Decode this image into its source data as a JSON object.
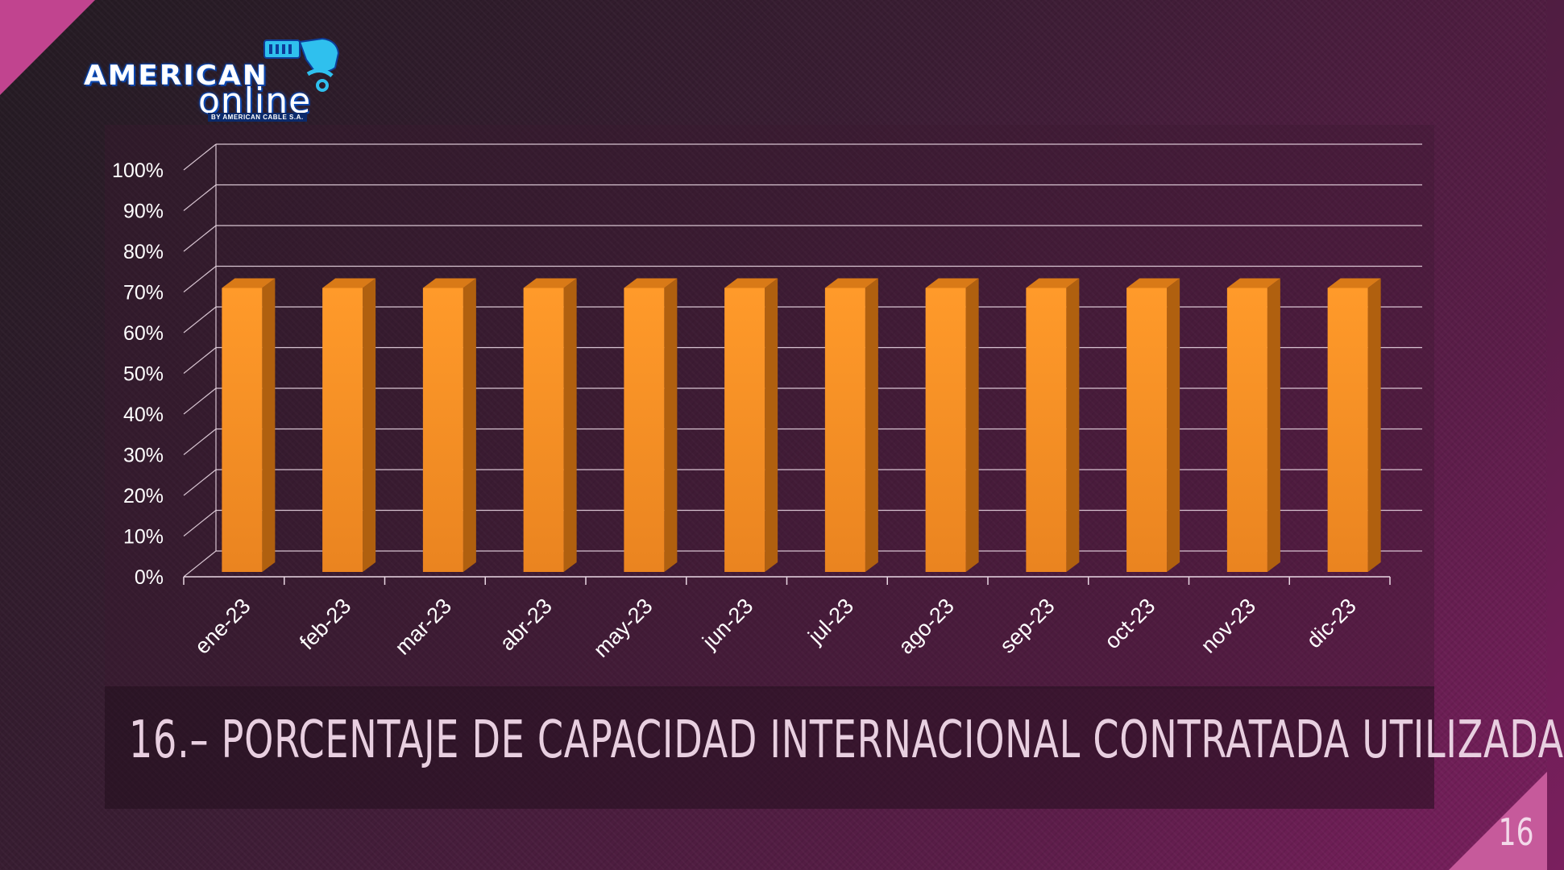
{
  "logo": {
    "line1": "AMERICAN",
    "line2": "online",
    "sub": "BY AMERICAN CABLE S.A.",
    "icon": "ethernet-plug-icon"
  },
  "slide": {
    "title": "16.– PORCENTAJE DE CAPACIDAD INTERNACIONAL CONTRATADA UTILIZADA",
    "page_number": "16"
  },
  "colors": {
    "bar_front": "#f6901f",
    "bar_side": "#b0600f",
    "bar_top": "#d97a17",
    "grid": "#e9d7e3",
    "text": "#ffffff"
  },
  "chart_data": {
    "type": "bar",
    "title": "",
    "xlabel": "",
    "ylabel": "",
    "categories": [
      "ene-23",
      "feb-23",
      "mar-23",
      "abr-23",
      "may-23",
      "jun-23",
      "jul-23",
      "ago-23",
      "sep-23",
      "oct-23",
      "nov-23",
      "dic-23"
    ],
    "values": [
      70,
      70,
      70,
      70,
      70,
      70,
      70,
      70,
      70,
      70,
      70,
      70
    ],
    "ylim": [
      0,
      100
    ],
    "yticks": [
      0,
      10,
      20,
      30,
      40,
      50,
      60,
      70,
      80,
      90,
      100
    ],
    "ytick_labels": [
      "0%",
      "10%",
      "20%",
      "30%",
      "40%",
      "50%",
      "60%",
      "70%",
      "80%",
      "90%",
      "100%"
    ],
    "grid": true,
    "legend": "none"
  }
}
